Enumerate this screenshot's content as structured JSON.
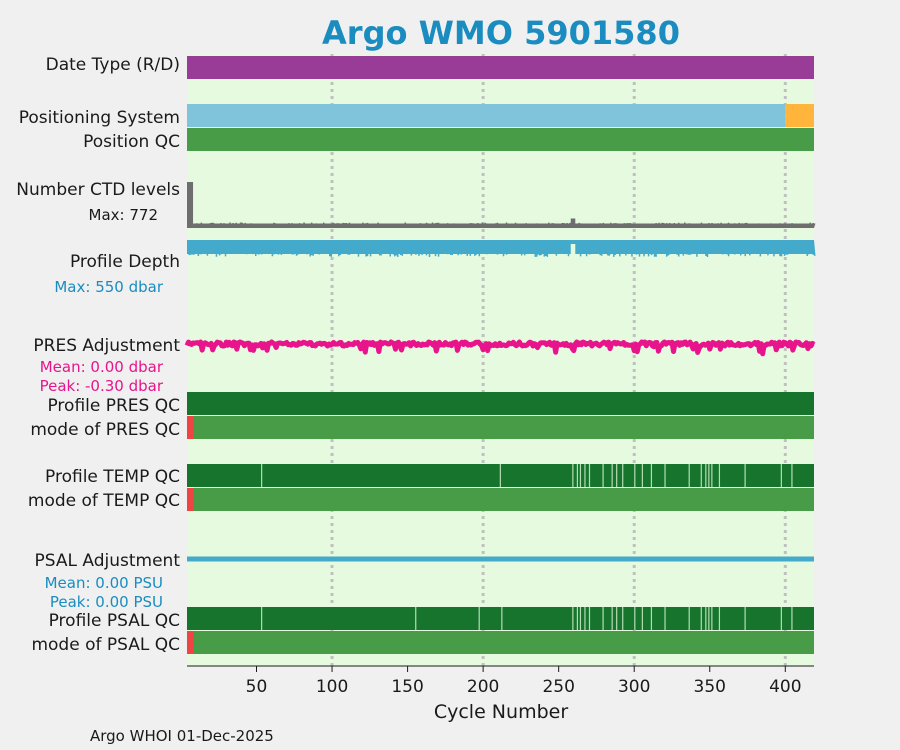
{
  "chart_data": {
    "type": "timeline",
    "title": "Argo WMO 5901580",
    "xlabel": "Cycle Number",
    "xlim": [
      4,
      419
    ],
    "xticks": [
      50,
      100,
      150,
      200,
      250,
      300,
      350,
      400
    ],
    "grid_x": [
      100,
      200,
      300,
      400
    ],
    "footer": "Argo WHOI 01-Dec-2025",
    "rows": {
      "date_type": {
        "label": "Date Type (R/D)",
        "color": "#983c98",
        "segments": [
          [
            4,
            419
          ]
        ]
      },
      "positioning": {
        "label": "Positioning System",
        "segments": [
          {
            "from": 4,
            "to": 400,
            "color": "#80c4dc"
          },
          {
            "from": 400,
            "to": 419,
            "color": "#ffb43c"
          }
        ]
      },
      "position_qc": {
        "label": "Position QC",
        "color": "#489c48",
        "segments": [
          [
            4,
            419
          ]
        ]
      },
      "ctd_levels": {
        "label": "Number CTD levels",
        "max_label": "Max: 772",
        "max": 772,
        "baseline": 75,
        "initial_cycles": [
          1,
          8
        ],
        "color": "#6e6e6e"
      },
      "profile_depth": {
        "label": "Profile Depth",
        "max_label": "Max:  550 dbar",
        "max": 550,
        "typical": 520,
        "color": "#44aacc"
      },
      "pres_adjustment": {
        "label": "PRES Adjustment",
        "mean_label": "Mean: 0.00 dbar",
        "peak_label": "Peak: -0.30 dbar",
        "mean": 0.0,
        "peak": -0.3,
        "color": "#e8148c"
      },
      "profile_pres_qc": {
        "label": "Profile PRES QC",
        "color": "#16742c",
        "segments": [
          [
            4,
            419
          ]
        ]
      },
      "mode_pres_qc": {
        "label": "mode of PRES QC",
        "bad_cycles": [
          1,
          8
        ],
        "bad_color": "#ee4444",
        "color": "#489c48"
      },
      "profile_temp_qc": {
        "label": "Profile TEMP QC",
        "color": "#16742c",
        "gap_color": "#b4dcb4",
        "gaps": [
          53,
          211,
          259,
          262,
          264,
          267,
          270,
          279,
          285,
          288,
          292,
          300,
          305,
          311,
          320,
          336,
          344,
          347,
          349,
          351,
          356,
          373,
          397,
          404
        ]
      },
      "mode_temp_qc": {
        "label": "mode of TEMP QC",
        "bad_cycles": [
          1,
          8
        ],
        "bad_color": "#ee4444",
        "color": "#489c48"
      },
      "psal_adjustment": {
        "label": "PSAL Adjustment",
        "mean_label": "Mean: 0.00 PSU",
        "peak_label": "Peak: 0.00 PSU",
        "mean": 0.0,
        "peak": 0.0,
        "color": "#44aacc"
      },
      "profile_psal_qc": {
        "label": "Profile PSAL QC",
        "color": "#16742c",
        "gap_color": "#b4dcb4",
        "gaps": [
          53,
          155,
          197,
          212,
          259,
          262,
          264,
          267,
          270,
          279,
          285,
          288,
          292,
          300,
          305,
          311,
          320,
          336,
          344,
          347,
          349,
          351,
          356,
          373,
          397,
          404
        ]
      },
      "mode_psal_qc": {
        "label": "mode of PSAL QC",
        "bad_cycles": [
          1,
          8
        ],
        "bad_color": "#ee4444",
        "color": "#489c48"
      }
    }
  }
}
